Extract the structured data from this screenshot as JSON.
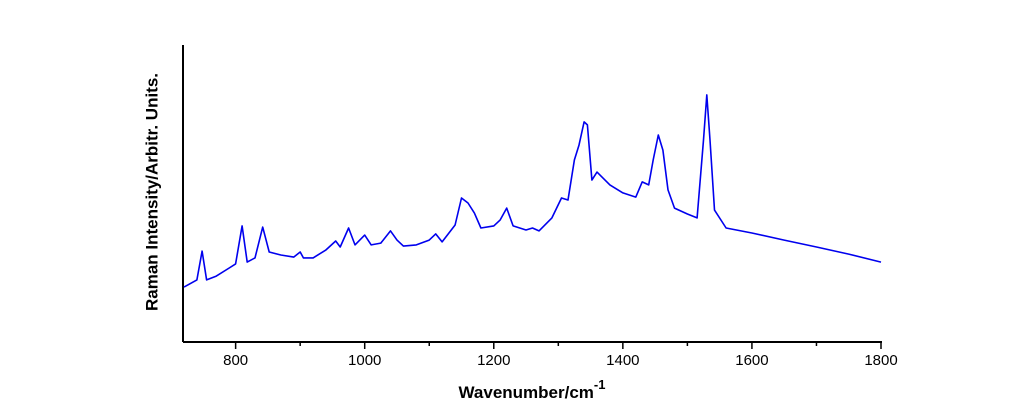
{
  "chart_data": {
    "type": "line",
    "xlabel": "Wavenumber/cm",
    "xlabel_superscript": "-1",
    "ylabel": "Raman Intensity/Arbitr. Units.",
    "xlim": [
      720,
      1800
    ],
    "xticks": [
      800,
      1000,
      1200,
      1400,
      1600,
      1800
    ],
    "xminorticks": [
      900,
      1100,
      1300,
      1500,
      1700
    ],
    "ylim": [
      0,
      100
    ],
    "series": [
      {
        "color": "#0000ee",
        "x": [
          720,
          740,
          748,
          755,
          770,
          790,
          800,
          810,
          818,
          830,
          842,
          852,
          870,
          890,
          900,
          905,
          920,
          940,
          955,
          962,
          975,
          985,
          1000,
          1010,
          1025,
          1040,
          1050,
          1060,
          1080,
          1100,
          1110,
          1120,
          1140,
          1150,
          1160,
          1170,
          1180,
          1200,
          1210,
          1220,
          1230,
          1250,
          1260,
          1270,
          1290,
          1305,
          1315,
          1325,
          1332,
          1340,
          1345,
          1352,
          1360,
          1380,
          1400,
          1420,
          1430,
          1440,
          1447,
          1455,
          1462,
          1470,
          1480,
          1500,
          1515,
          1525,
          1530,
          1535,
          1542,
          1560,
          1600,
          1650,
          1700,
          1750,
          1800
        ],
        "values": [
          18.5,
          20.9,
          30.6,
          20.9,
          22.2,
          24.9,
          26.3,
          39.1,
          26.9,
          28.3,
          38.7,
          30.3,
          29.3,
          28.6,
          30.3,
          28.3,
          28.3,
          31.0,
          34.0,
          32.0,
          38.4,
          32.7,
          36.0,
          32.7,
          33.3,
          37.4,
          34.3,
          32.3,
          32.7,
          34.3,
          36.4,
          33.7,
          39.4,
          48.5,
          46.8,
          43.4,
          38.4,
          39.1,
          41.1,
          45.1,
          39.1,
          37.7,
          38.4,
          37.4,
          41.8,
          48.5,
          47.8,
          61.3,
          66.3,
          74.1,
          73.1,
          54.5,
          57.2,
          52.9,
          50.2,
          48.8,
          53.9,
          52.9,
          61.3,
          69.7,
          64.6,
          51.2,
          45.1,
          43.1,
          41.8,
          68.0,
          83.2,
          68.0,
          44.4,
          38.4,
          36.7,
          34.3,
          32.0,
          29.6,
          26.9
        ]
      }
    ]
  }
}
